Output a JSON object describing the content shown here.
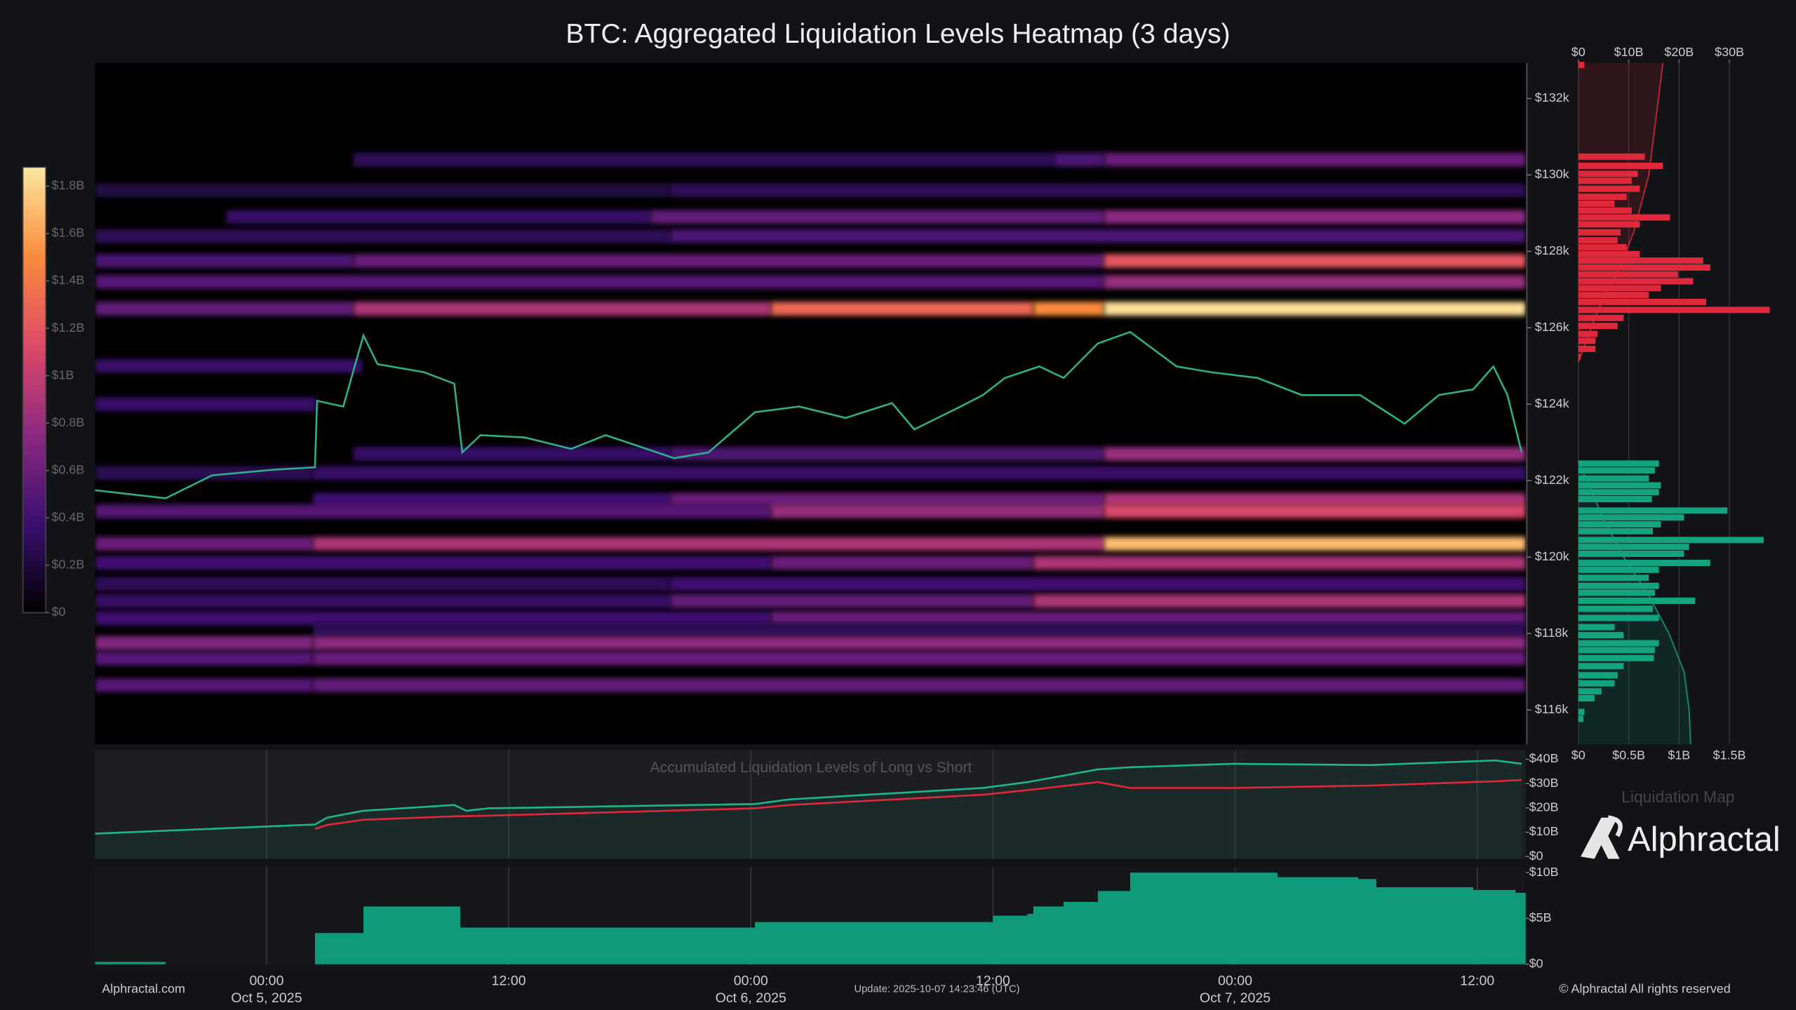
{
  "chart_data": [
    {
      "type": "heatmap",
      "title": "BTC: Aggregated Liquidation Levels Heatmap (3 days)",
      "xlim": [
        -8.5,
        62.4
      ],
      "xticks": [
        {
          "value": 0,
          "label": "00:00",
          "date": "Oct 5, 2025"
        },
        {
          "value": 12,
          "label": "12:00"
        },
        {
          "value": 24,
          "label": "00:00",
          "date": "Oct 6, 2025"
        },
        {
          "value": 36,
          "label": "12:00"
        },
        {
          "value": 48,
          "label": "00:00",
          "date": "Oct 7, 2025"
        },
        {
          "value": 60,
          "label": "12:00"
        }
      ],
      "ylim": [
        115101,
        132929
      ],
      "yticks": [
        {
          "value": 116000,
          "label": "$116k"
        },
        {
          "value": 118000,
          "label": "$118k"
        },
        {
          "value": 120000,
          "label": "$120k"
        },
        {
          "value": 122000,
          "label": "$122k"
        },
        {
          "value": 124000,
          "label": "$124k"
        },
        {
          "value": 126000,
          "label": "$126k"
        },
        {
          "value": 128000,
          "label": "$128k"
        },
        {
          "value": 130000,
          "label": "$130k"
        },
        {
          "value": 132000,
          "label": "$132k"
        }
      ],
      "colorbar": {
        "lim": [
          0,
          1.88
        ],
        "colors": [
          "#000000",
          "#3b0f70",
          "#8c2981",
          "#de4968",
          "#fb8b3c",
          "#fde7a0"
        ],
        "ticks": [
          {
            "value": 0,
            "label": "$0"
          },
          {
            "value": 0.2,
            "label": "$0.2B"
          },
          {
            "value": 0.4,
            "label": "$0.4B"
          },
          {
            "value": 0.6,
            "label": "$0.6B"
          },
          {
            "value": 0.8,
            "label": "$0.8B"
          },
          {
            "value": 1,
            "label": "$1B"
          },
          {
            "value": 1.2,
            "label": "$1.2B"
          },
          {
            "value": 1.4,
            "label": "$1.4B"
          },
          {
            "value": 1.6,
            "label": "$1.6B"
          },
          {
            "value": 1.8,
            "label": "$1.8B"
          }
        ]
      },
      "bands": [
        {
          "price": 130400,
          "x": [
            4.3,
            39,
            41.5
          ],
          "values": [
            0.3,
            0.45,
            0.6
          ]
        },
        {
          "price": 129600,
          "x": [
            -8.5,
            20
          ],
          "values": [
            0.22,
            0.3
          ]
        },
        {
          "price": 128900,
          "x": [
            -2,
            19,
            41.5
          ],
          "values": [
            0.35,
            0.55,
            0.75
          ]
        },
        {
          "price": 128400,
          "x": [
            -8.5,
            20
          ],
          "values": [
            0.3,
            0.45
          ]
        },
        {
          "price": 127750,
          "x": [
            -8.5,
            4.3,
            41.5
          ],
          "values": [
            0.45,
            0.6,
            1.2
          ]
        },
        {
          "price": 127200,
          "x": [
            -8.5,
            41.5
          ],
          "values": [
            0.5,
            0.8
          ]
        },
        {
          "price": 126500,
          "x": [
            -8.5,
            4.3,
            25,
            38,
            41.5
          ],
          "values": [
            0.55,
            0.9,
            1.3,
            1.5,
            1.85
          ]
        },
        {
          "price": 125000,
          "x": [
            -8.5,
            4.8
          ],
          "values": [
            0.35,
            0
          ]
        },
        {
          "price": 124000,
          "x": [
            -8.5,
            2.5
          ],
          "values": [
            0.35,
            0
          ]
        },
        {
          "price": 122700,
          "x": [
            4.3,
            20,
            41.5
          ],
          "values": [
            0.35,
            0.45,
            0.8
          ]
        },
        {
          "price": 122200,
          "x": [
            -8.5,
            2.3
          ],
          "values": [
            0.28,
            0.35
          ]
        },
        {
          "price": 121500,
          "x": [
            2.3,
            20,
            41.5
          ],
          "values": [
            0.4,
            0.6,
            0.9
          ]
        },
        {
          "price": 121200,
          "x": [
            -8.5,
            25,
            41.5
          ],
          "values": [
            0.5,
            0.8,
            1.1
          ]
        },
        {
          "price": 120350,
          "x": [
            -8.5,
            2.3,
            41.5
          ],
          "values": [
            0.6,
            0.9,
            1.7
          ]
        },
        {
          "price": 119850,
          "x": [
            -8.5,
            25,
            38
          ],
          "values": [
            0.4,
            0.6,
            0.9
          ]
        },
        {
          "price": 119300,
          "x": [
            -8.5,
            20
          ],
          "values": [
            0.3,
            0.4
          ]
        },
        {
          "price": 118850,
          "x": [
            -8.5,
            20,
            38
          ],
          "values": [
            0.35,
            0.55,
            0.9
          ]
        },
        {
          "price": 118400,
          "x": [
            -8.5,
            25
          ],
          "values": [
            0.4,
            0.6
          ]
        },
        {
          "price": 118100,
          "x": [
            2.3
          ],
          "values": [
            0.3
          ]
        },
        {
          "price": 117750,
          "x": [
            -8.5,
            2.3
          ],
          "values": [
            0.7,
            0.75
          ]
        },
        {
          "price": 117350,
          "x": [
            -8.5,
            2.3
          ],
          "values": [
            0.5,
            0.6
          ]
        },
        {
          "price": 116650,
          "x": [
            -8.5,
            2.3
          ],
          "values": [
            0.5,
            0.55
          ]
        }
      ],
      "price": {
        "color": "#2fae8a",
        "x": [
          -8.5,
          -5.0,
          -2.7,
          0.4,
          2.4,
          2.5,
          3.8,
          4.8,
          5.5,
          7.8,
          9.3,
          9.7,
          10.6,
          12.8,
          15.1,
          16.8,
          18.5,
          20.2,
          21.9,
          24.2,
          26.4,
          28.7,
          31.0,
          32.1,
          34.4,
          35.5,
          36.6,
          38.3,
          39.5,
          41.2,
          42.8,
          45.1,
          46.8,
          49.1,
          51.3,
          54.2,
          56.4,
          58.1,
          59.8,
          60.8,
          61.5,
          62.2
        ],
        "values": [
          121750,
          121540,
          122140,
          122290,
          122350,
          124090,
          123940,
          125800,
          125050,
          124840,
          124540,
          122740,
          123190,
          123130,
          122830,
          123190,
          122890,
          122590,
          122740,
          123790,
          123940,
          123640,
          124030,
          123340,
          123940,
          124240,
          124690,
          124990,
          124690,
          125590,
          125890,
          124990,
          124840,
          124690,
          124240,
          124240,
          123490,
          124240,
          124390,
          124990,
          124240,
          122740
        ]
      }
    },
    {
      "type": "bar",
      "orientation": "horizontal",
      "title": "Liquidation Map",
      "xlim": [
        0,
        2.15
      ],
      "xticks": [
        {
          "value": 0,
          "label": "$0"
        },
        {
          "value": 0.5,
          "label": "$0.5B"
        },
        {
          "value": 1,
          "label": "$1B"
        },
        {
          "value": 1.5,
          "label": "$1.5B"
        }
      ],
      "x2lim": [
        0,
        43
      ],
      "x2ticks": [
        {
          "value": 0,
          "label": "$0"
        },
        {
          "value": 10,
          "label": "$10B"
        },
        {
          "value": 20,
          "label": "$20B"
        },
        {
          "value": 30,
          "label": "$30B"
        }
      ],
      "series": [
        {
          "color": "#e0283c",
          "prices": [
            132870,
            130470,
            130230,
            130020,
            129840,
            129630,
            129420,
            129240,
            129060,
            128880,
            128700,
            128490,
            128280,
            128100,
            127920,
            127750,
            127570,
            127390,
            127210,
            127030,
            126850,
            126670,
            126460,
            126250,
            126040,
            125830,
            125650,
            125440,
            125230
          ],
          "values": [
            0.06,
            0.66,
            0.84,
            0.59,
            0.53,
            0.61,
            0.48,
            0.36,
            0.53,
            0.91,
            0.61,
            0.42,
            0.39,
            0.48,
            0.61,
            1.24,
            1.31,
            0.99,
            1.14,
            0.82,
            0.7,
            1.27,
            1.9,
            0.45,
            0.39,
            0.19,
            0.17,
            0.17,
            0.02
          ]
        },
        {
          "color": "#14a37f",
          "prices": [
            122440,
            122260,
            122050,
            121870,
            121690,
            121510,
            121210,
            121030,
            120850,
            120670,
            120440,
            120260,
            120080,
            119840,
            119660,
            119450,
            119240,
            119060,
            118850,
            118640,
            118400,
            118160,
            117950,
            117740,
            117560,
            117350,
            117140,
            116900,
            116690,
            116480,
            116300,
            115940,
            115760
          ],
          "values": [
            0.8,
            0.76,
            0.7,
            0.82,
            0.8,
            0.73,
            1.48,
            1.05,
            0.82,
            0.74,
            1.84,
            1.1,
            1.05,
            1.31,
            0.8,
            0.7,
            0.8,
            0.76,
            1.16,
            0.74,
            0.8,
            0.36,
            0.45,
            0.8,
            0.76,
            0.75,
            0.45,
            0.39,
            0.36,
            0.23,
            0.16,
            0.06,
            0.05
          ]
        },
        {
          "axis": "x2",
          "color": "#e0283c",
          "prices": [
            125100,
            126500,
            127500,
            128500,
            130000,
            132929
          ],
          "values": [
            0,
            4,
            8,
            11,
            14,
            16.8
          ]
        },
        {
          "axis": "x2",
          "color": "#14a37f",
          "prices": [
            122500,
            121000,
            120000,
            119000,
            118000,
            117000,
            116000,
            115101
          ],
          "values": [
            0,
            5,
            9,
            14,
            18,
            21,
            22,
            22.3
          ]
        }
      ]
    },
    {
      "type": "line",
      "title": "Accumulated Liquidation Levels of Long vs Short",
      "x": [
        -8.5,
        2.4,
        3.0,
        4.8,
        9.3,
        9.9,
        11.0,
        24.2,
        25.9,
        35.5,
        37.7,
        41.2,
        42.8,
        47.9,
        54.7,
        60.9,
        62.2
      ],
      "ylim": [
        0,
        40
      ],
      "yticks": [
        {
          "value": 0,
          "label": "$0"
        },
        {
          "value": 10,
          "label": "$10B"
        },
        {
          "value": 20,
          "label": "$20B"
        },
        {
          "value": 30,
          "label": "$30B"
        },
        {
          "value": 40,
          "label": "$40B"
        }
      ],
      "series": [
        {
          "color": "#1fb58a",
          "values": [
            9.4,
            13.2,
            16.0,
            18.8,
            21.2,
            18.8,
            19.8,
            21.6,
            23.5,
            28.2,
            30.6,
            35.8,
            36.7,
            38.1,
            37.6,
            39.5,
            38.1
          ]
        },
        {
          "color": "#e0283c",
          "values": [
            null,
            11.3,
            13.0,
            15.1,
            16.5,
            16.6,
            16.8,
            19.8,
            21.2,
            25.4,
            27.3,
            30.6,
            28.2,
            28.2,
            29.2,
            30.9,
            31.5
          ]
        }
      ]
    },
    {
      "type": "area",
      "step": true,
      "color": "#0f9a7a",
      "x": [
        -8.5,
        -5.0,
        2.4,
        4.8,
        9.6,
        24.2,
        36.0,
        37.7,
        38.0,
        39.5,
        41.2,
        42.8,
        50.1,
        54.1,
        55.0,
        59.8,
        61.9
      ],
      "values": [
        0.25,
        0,
        3.4,
        6.3,
        4.0,
        4.6,
        5.3,
        5.5,
        6.3,
        6.8,
        8.0,
        10.0,
        9.5,
        9.3,
        8.4,
        8.1,
        7.8
      ],
      "ylim": [
        0,
        10.3
      ],
      "yticks": [
        {
          "value": 0,
          "label": "$0"
        },
        {
          "value": 5,
          "label": "$5B"
        },
        {
          "value": 10,
          "label": "$10B"
        }
      ]
    }
  ],
  "footer": {
    "source": "Alphractal.com",
    "update": "Update: 2025-10-07 14:23:46 (UTC)",
    "brand": "Alphractal",
    "copyright": "© Alphractal All rights reserved"
  }
}
